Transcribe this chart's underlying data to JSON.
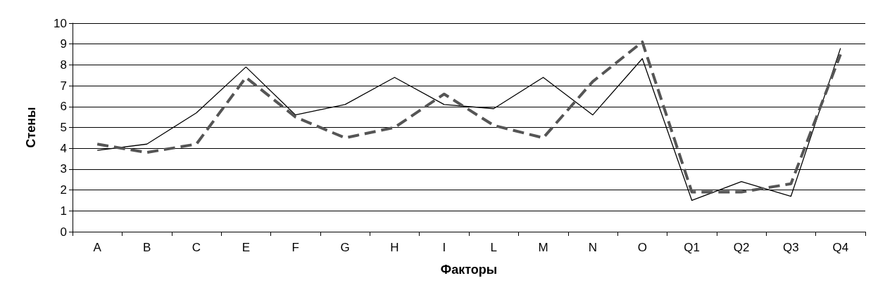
{
  "chart_data": {
    "type": "line",
    "xlabel": "Факторы",
    "ylabel": "Стены",
    "categories": [
      "A",
      "B",
      "C",
      "E",
      "F",
      "G",
      "H",
      "I",
      "L",
      "M",
      "N",
      "O",
      "Q1",
      "Q2",
      "Q3",
      "Q4"
    ],
    "series": [
      {
        "color": "#000000",
        "line_style": "solid",
        "values": [
          3.9,
          4.2,
          5.7,
          7.9,
          5.6,
          6.1,
          7.4,
          6.1,
          5.9,
          7.4,
          5.6,
          8.3,
          1.5,
          2.4,
          1.7,
          8.8
        ]
      },
      {
        "color": "#555555",
        "line_style": "dashed",
        "values": [
          4.2,
          3.8,
          4.2,
          7.4,
          5.5,
          4.5,
          5.0,
          6.6,
          5.1,
          4.5,
          7.2,
          9.1,
          1.9,
          1.9,
          2.3,
          8.5
        ]
      }
    ],
    "ylim": [
      0,
      10
    ],
    "yticks": [
      0,
      1,
      2,
      3,
      4,
      5,
      6,
      7,
      8,
      9,
      10
    ],
    "grid": "y",
    "marker": "none"
  }
}
